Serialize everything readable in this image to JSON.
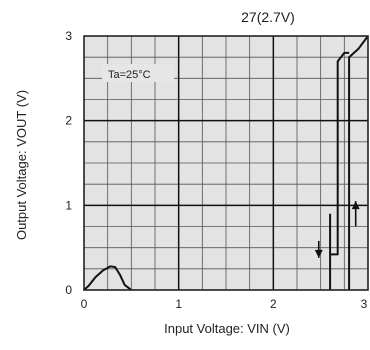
{
  "chart_data": {
    "type": "line",
    "title": "27(2.7V)",
    "xlabel": "Input Voltage: VIN (V)",
    "ylabel": "Output Voltage: VOUT (V)",
    "annotation": "Ta=25°C",
    "xlim": [
      0,
      3
    ],
    "ylim": [
      0,
      3
    ],
    "x_ticks": [
      "0",
      "1",
      "2",
      "3"
    ],
    "y_ticks": [
      "0",
      "1",
      "2",
      "3"
    ],
    "x_minor_step": 0.25,
    "y_minor_step": 0.25,
    "grid": true,
    "series": [
      {
        "points": [
          [
            0.0,
            0.0
          ],
          [
            0.05,
            0.05
          ],
          [
            0.12,
            0.15
          ],
          [
            0.2,
            0.23
          ],
          [
            0.28,
            0.28
          ],
          [
            0.33,
            0.27
          ],
          [
            0.38,
            0.18
          ],
          [
            0.43,
            0.06
          ],
          [
            0.5,
            0.0
          ]
        ]
      },
      {
        "points": [
          [
            2.6,
            0.0
          ],
          [
            2.6,
            0.42
          ],
          [
            2.6,
            0.6
          ],
          [
            2.6,
            0.9
          ]
        ]
      },
      {
        "points": [
          [
            2.8,
            0.0
          ],
          [
            2.8,
            1.05
          ],
          [
            2.8,
            2.75
          ],
          [
            2.9,
            2.85
          ],
          [
            3.0,
            3.0
          ]
        ]
      },
      {
        "points": [
          [
            2.6,
            0.42
          ],
          [
            2.68,
            0.42
          ],
          [
            2.68,
            2.7
          ],
          [
            2.75,
            2.8
          ],
          [
            2.8,
            2.8
          ]
        ]
      }
    ],
    "arrows": [
      {
        "x": 2.48,
        "y_from": 0.58,
        "y_to": 0.38,
        "direction": "down"
      },
      {
        "x": 2.87,
        "y_from": 0.75,
        "y_to": 1.05,
        "direction": "up"
      }
    ]
  }
}
